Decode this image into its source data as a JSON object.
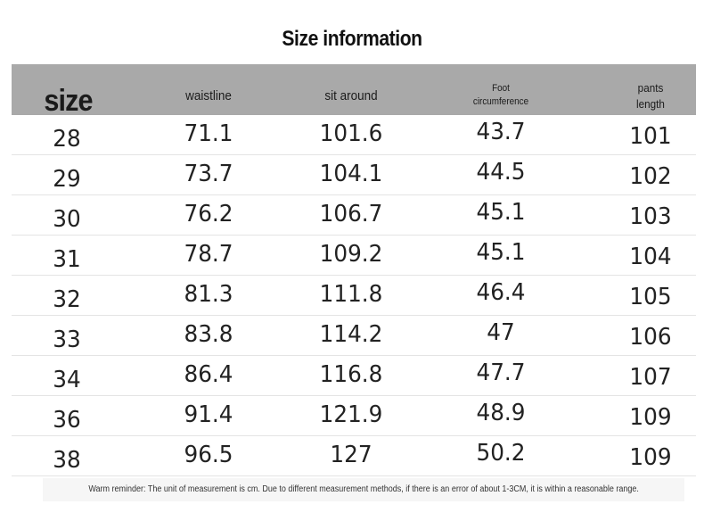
{
  "title": "Size information",
  "headers": {
    "size": "size",
    "waistline": "waistline",
    "sit_around": "sit around",
    "foot_line1": "Foot",
    "foot_line2": "circumference",
    "pants_line1": "pants",
    "pants_line2": "length"
  },
  "rows": [
    [
      "28",
      "71.1",
      "101.6",
      "43.7",
      "101"
    ],
    [
      "29",
      "73.7",
      "104.1",
      "44.5",
      "102"
    ],
    [
      "30",
      "76.2",
      "106.7",
      "45.1",
      "103"
    ],
    [
      "31",
      "78.7",
      "109.2",
      "45.1",
      "104"
    ],
    [
      "32",
      "81.3",
      "111.8",
      "46.4",
      "105"
    ],
    [
      "33",
      "83.8",
      "114.2",
      "47",
      "106"
    ],
    [
      "34",
      "86.4",
      "116.8",
      "47.7",
      "107"
    ],
    [
      "36",
      "91.4",
      "121.9",
      "48.9",
      "109"
    ],
    [
      "38",
      "96.5",
      "127",
      "50.2",
      "109"
    ]
  ],
  "footer": "Warm reminder: The unit of measurement is cm. Due to different measurement methods, if there is an error of about 1-3CM, it is within a reasonable range.",
  "colors": {
    "header_bg": "#a9a9a9",
    "row_divider": "#e4e4e4",
    "footer_bg": "#f6f6f6"
  }
}
